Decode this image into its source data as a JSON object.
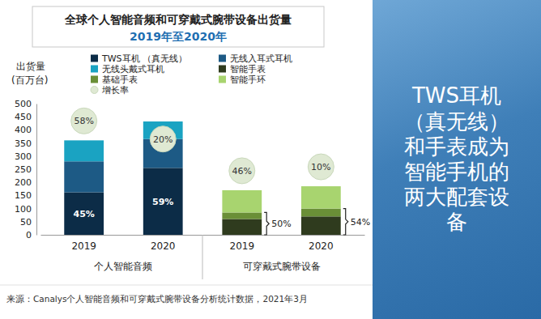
{
  "chart_data": {
    "type": "bar",
    "stacked": true,
    "title": "全球个人智能音频和可穿戴式腕带设备出货量",
    "subtitle": "2019年至2020年",
    "ylabel": "出货量",
    "ylabel_unit": "(百万台)",
    "categories": [
      "2019",
      "2020",
      "2019",
      "2020"
    ],
    "category_groups": [
      "个人智能音频",
      "个人智能音频",
      "可穿戴式腕带设备",
      "可穿戴式腕带设备"
    ],
    "series": [
      {
        "name": "TWS耳机 （真无线）",
        "color": "#0c2c47",
        "values": [
          162,
          255,
          null,
          null
        ]
      },
      {
        "name": "无线入耳式耳机",
        "color": "#1d5a85",
        "values": [
          118,
          110,
          null,
          null
        ]
      },
      {
        "name": "无线头戴式耳机",
        "color": "#1aa3c2",
        "values": [
          80,
          67,
          null,
          null
        ]
      },
      {
        "name": "智能手表",
        "color": "#2f3b1e",
        "values": [
          null,
          null,
          60,
          70
        ]
      },
      {
        "name": "基础手表",
        "color": "#6a8f37",
        "values": [
          null,
          null,
          25,
          30
        ]
      },
      {
        "name": "智能手环",
        "color": "#a8d46f",
        "values": [
          null,
          null,
          85,
          85
        ]
      }
    ],
    "growth": {
      "name": "增长率",
      "color": "#dfe9d3",
      "values": [
        58,
        20,
        46,
        10
      ],
      "value_labels": [
        "58%",
        "20%",
        "46%",
        "10%"
      ]
    },
    "share": {
      "values": [
        45,
        59,
        50,
        54
      ],
      "value_labels": [
        "45%",
        "59%",
        "50%",
        "54%"
      ]
    },
    "ylim": [
      0,
      500
    ],
    "yticks": [
      0,
      50,
      100,
      150,
      200,
      250,
      300,
      350,
      400,
      450,
      500
    ],
    "grid": false,
    "legend": "top",
    "source": "来源：Canalys个人智能音频和可穿戴式腕带设备分析统计数据，2021年3月",
    "side_text": "TWS耳机（真无线）和手表成为智能手机的两大配套设备"
  }
}
